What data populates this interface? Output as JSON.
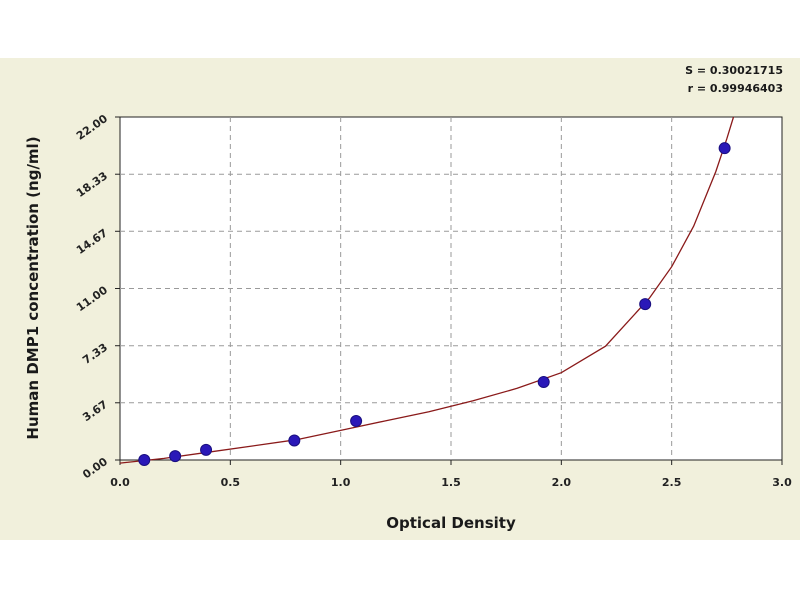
{
  "chart_data": {
    "type": "scatter",
    "title": "",
    "xlabel": "Optical Density",
    "ylabel": "Human DMP1 concentration (ng/ml)",
    "xlim": [
      0.0,
      3.0
    ],
    "ylim": [
      0.0,
      22.0
    ],
    "x_ticks": [
      "0.0",
      "0.5",
      "1.0",
      "1.5",
      "2.0",
      "2.5",
      "3.0"
    ],
    "y_ticks": [
      "0.00",
      "3.67",
      "7.33",
      "11.00",
      "14.67",
      "18.33",
      "22.00"
    ],
    "grid": true,
    "series": [
      {
        "type": "scatter",
        "x": [
          0.11,
          0.25,
          0.39,
          0.79,
          1.07,
          1.92,
          2.38,
          2.74
        ],
        "y": [
          0.0,
          0.25,
          0.65,
          1.25,
          2.5,
          5.0,
          10.0,
          20.0
        ]
      }
    ],
    "fit_curve": {
      "type": "line",
      "x": [
        0.0,
        0.2,
        0.4,
        0.6,
        0.8,
        1.0,
        1.2,
        1.4,
        1.6,
        1.8,
        2.0,
        2.2,
        2.4,
        2.5,
        2.6,
        2.7,
        2.75,
        2.78
      ],
      "y": [
        -0.2,
        0.1,
        0.5,
        0.9,
        1.3,
        1.9,
        2.5,
        3.1,
        3.8,
        4.6,
        5.6,
        7.3,
        10.4,
        12.4,
        15.0,
        18.5,
        20.6,
        22.0
      ]
    },
    "stats": [
      "S = 0.30021715",
      "r = 0.99946403"
    ],
    "colors": {
      "panel_background": "#f1f0dc",
      "plot_background": "#ffffff",
      "grid": "#9a9a9a",
      "marker_fill": "#2a18b8",
      "curve": "#8a1a1a"
    }
  }
}
